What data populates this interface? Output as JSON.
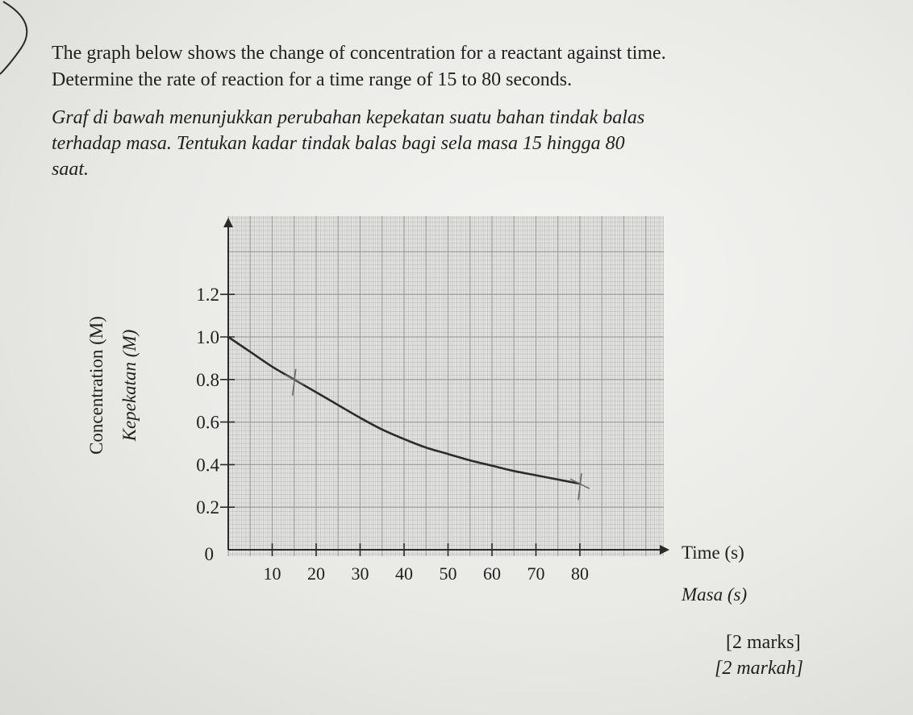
{
  "question": {
    "english_line1": "The graph below shows the change of concentration for a reactant against time.",
    "english_line2": "Determine the rate of reaction for a time range of 15 to 80 seconds.",
    "malay_line1": "Graf di bawah menunjukkan perubahan kepekatan suatu bahan tindak balas",
    "malay_line2": "terhadap masa. Tentukan kadar tindak balas bagi sela masa 15 hingga 80",
    "malay_line3": "saat."
  },
  "marks": {
    "english": "[2 marks]",
    "malay": "[2 markah]"
  },
  "colors": {
    "grid": "#9a9a9a",
    "curve": "#2c2c2c",
    "paper": "#e2e2e0",
    "pencil": "#6a6a6a"
  },
  "chart_data": {
    "type": "line",
    "xlabel": "Time (s)",
    "xlabel_alt": "Masa (s)",
    "ylabel": "Concentration (M)",
    "ylabel_alt": "Kepekatan (M)",
    "xlim": [
      0,
      100
    ],
    "ylim": [
      -0.05,
      1.5
    ],
    "x_ticks": [
      10,
      20,
      30,
      40,
      50,
      60,
      70,
      80
    ],
    "x_tick_labels": [
      "10",
      "20",
      "30",
      "40",
      "50",
      "60",
      "70",
      "80"
    ],
    "y_ticks": [
      0,
      0.2,
      0.4,
      0.6,
      0.8,
      1.0,
      1.2
    ],
    "y_tick_labels": [
      "0",
      "0.2",
      "0.4",
      "0.6",
      "0.8",
      "1.0",
      "1.2"
    ],
    "grid": true,
    "series": [
      {
        "x": [
          0,
          5,
          10,
          15,
          20,
          25,
          30,
          35,
          40,
          45,
          50,
          55,
          60,
          65,
          70,
          75,
          80
        ],
        "y": [
          1.0,
          0.93,
          0.86,
          0.8,
          0.74,
          0.68,
          0.62,
          0.565,
          0.52,
          0.48,
          0.45,
          0.42,
          0.395,
          0.37,
          0.35,
          0.33,
          0.31
        ]
      }
    ],
    "marked_points": [
      {
        "x": 15,
        "y": 0.8
      },
      {
        "x": 80,
        "y": 0.31
      }
    ]
  }
}
